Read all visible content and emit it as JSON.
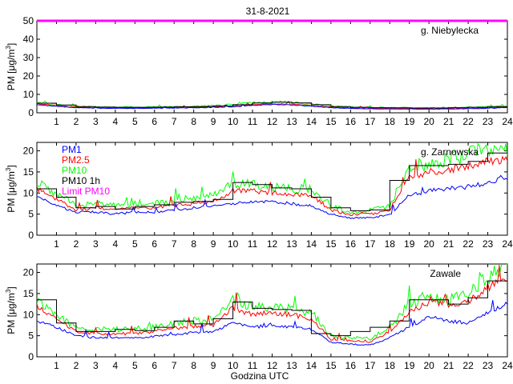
{
  "figure_title": "31-8-2021",
  "xlabel": "Godzina UTC",
  "colors": {
    "pm1": "#0000ff",
    "pm25": "#ff0000",
    "pm10": "#00ff00",
    "pm10_1h": "#000000",
    "limit": "#ff00ff"
  },
  "chart_data": [
    {
      "type": "line",
      "station": "g. Niebylecka",
      "ylabel": "PM [μg/m3]",
      "xlim": [
        0,
        24
      ],
      "ylim": [
        0,
        50
      ],
      "yticks": [
        0,
        10,
        20,
        30,
        40,
        50
      ],
      "xticks": [
        1,
        2,
        3,
        4,
        5,
        6,
        7,
        8,
        9,
        10,
        11,
        12,
        13,
        14,
        15,
        16,
        17,
        18,
        19,
        20,
        21,
        22,
        23,
        24
      ],
      "limit_pm10": 50,
      "hours": [
        0,
        1,
        2,
        3,
        4,
        5,
        6,
        7,
        8,
        9,
        10,
        11,
        12,
        13,
        14,
        15,
        16,
        17,
        18,
        19,
        20,
        21,
        22,
        23,
        24
      ],
      "series": [
        {
          "name": "PM1",
          "values": [
            4.5,
            3.5,
            2.8,
            2.5,
            2.4,
            2.4,
            2.5,
            2.6,
            2.7,
            2.9,
            3.3,
            4.0,
            4.5,
            4.3,
            3.6,
            2.8,
            2.4,
            2.2,
            2.1,
            2.0,
            2.0,
            2.1,
            2.2,
            2.4,
            2.8
          ]
        },
        {
          "name": "PM2.5",
          "values": [
            5.0,
            3.9,
            3.1,
            2.8,
            2.7,
            2.7,
            2.8,
            2.9,
            3.0,
            3.2,
            3.7,
            4.5,
            5.0,
            4.8,
            4.0,
            3.1,
            2.7,
            2.5,
            2.4,
            2.3,
            2.3,
            2.4,
            2.5,
            2.7,
            3.1
          ]
        },
        {
          "name": "PM10",
          "values": [
            5.8,
            4.5,
            3.6,
            3.2,
            3.1,
            3.1,
            3.2,
            3.4,
            3.5,
            3.8,
            4.5,
            5.5,
            6.0,
            5.7,
            4.7,
            3.6,
            3.1,
            2.9,
            2.8,
            2.7,
            2.7,
            2.8,
            3.0,
            3.3,
            3.8
          ]
        }
      ],
      "pm10_hourly": [
        5.2,
        4.2,
        3.4,
        3.1,
        3.0,
        3.0,
        3.1,
        3.3,
        3.4,
        3.7,
        4.4,
        5.3,
        5.8,
        5.4,
        4.4,
        3.4,
        3.0,
        2.8,
        2.7,
        2.6,
        2.6,
        2.8,
        3.0,
        3.4
      ]
    },
    {
      "type": "line",
      "station": "g. Zarnowska",
      "ylabel": "PM [μg/m3]",
      "xlim": [
        0,
        24
      ],
      "ylim": [
        0,
        22
      ],
      "yticks": [
        0,
        5,
        10,
        15,
        20
      ],
      "xticks": [
        1,
        2,
        3,
        4,
        5,
        6,
        7,
        8,
        9,
        10,
        11,
        12,
        13,
        14,
        15,
        16,
        17,
        18,
        19,
        20,
        21,
        22,
        23,
        24
      ],
      "legend": [
        "PM1",
        "PM2.5",
        "PM10",
        "PM10 1h",
        "Limit PM10"
      ],
      "hours": [
        0,
        1,
        2,
        3,
        4,
        5,
        6,
        7,
        8,
        9,
        10,
        11,
        12,
        13,
        14,
        15,
        16,
        17,
        18,
        19,
        20,
        21,
        22,
        23,
        24
      ],
      "series": [
        {
          "name": "PM1",
          "values": [
            9.0,
            7.0,
            5.5,
            5.5,
            5.0,
            5.5,
            5.5,
            6.0,
            6.5,
            6.8,
            7.5,
            8.0,
            8.0,
            7.5,
            7.0,
            5.0,
            4.0,
            4.2,
            4.8,
            9.5,
            10.5,
            11.0,
            11.5,
            12.5,
            13.5
          ]
        },
        {
          "name": "PM2.5",
          "values": [
            11.0,
            8.5,
            6.0,
            6.5,
            6.0,
            6.5,
            6.5,
            7.0,
            7.5,
            8.0,
            10.5,
            10.5,
            10.0,
            9.5,
            9.5,
            6.0,
            4.8,
            5.0,
            6.0,
            14.0,
            15.0,
            15.5,
            16.5,
            18.0,
            17.5
          ]
        },
        {
          "name": "PM10",
          "values": [
            12.5,
            10.0,
            7.0,
            7.5,
            7.0,
            7.5,
            7.5,
            8.2,
            8.8,
            9.5,
            12.0,
            12.0,
            11.5,
            11.0,
            11.0,
            7.0,
            5.5,
            5.8,
            7.0,
            16.5,
            17.0,
            18.0,
            19.0,
            20.5,
            20.0
          ]
        }
      ],
      "pm10_hourly": [
        11.0,
        9.0,
        6.5,
        6.8,
        6.2,
        6.8,
        7.2,
        7.8,
        8.0,
        8.5,
        12.5,
        12.0,
        11.2,
        11.0,
        9.0,
        6.5,
        5.8,
        6.0,
        13.0,
        16.5,
        16.5,
        16.8,
        17.5,
        19.5
      ]
    },
    {
      "type": "line",
      "station": "Zawale",
      "ylabel": "PM [μg/m3]",
      "xlim": [
        0,
        24
      ],
      "ylim": [
        0,
        22
      ],
      "yticks": [
        0,
        5,
        10,
        15,
        20
      ],
      "xticks": [
        1,
        2,
        3,
        4,
        5,
        6,
        7,
        8,
        9,
        10,
        11,
        12,
        13,
        14,
        15,
        16,
        17,
        18,
        19,
        20,
        21,
        22,
        23,
        24
      ],
      "hours": [
        0,
        1,
        2,
        3,
        4,
        5,
        6,
        7,
        8,
        9,
        10,
        11,
        12,
        13,
        14,
        15,
        16,
        17,
        18,
        19,
        20,
        21,
        22,
        23,
        24
      ],
      "series": [
        {
          "name": "PM1",
          "values": [
            8.5,
            7.0,
            5.0,
            4.5,
            4.5,
            4.5,
            4.8,
            5.2,
            5.8,
            6.0,
            8.0,
            7.0,
            7.5,
            7.0,
            6.5,
            3.5,
            3.0,
            2.8,
            4.5,
            7.0,
            9.5,
            8.5,
            8.0,
            10.5,
            12.5
          ]
        },
        {
          "name": "PM2.5",
          "values": [
            12.0,
            9.0,
            6.0,
            5.5,
            5.5,
            5.5,
            6.0,
            6.8,
            7.2,
            7.5,
            11.5,
            10.0,
            10.5,
            10.0,
            9.0,
            4.2,
            3.8,
            3.5,
            6.0,
            10.5,
            13.0,
            12.5,
            13.0,
            16.5,
            18.5
          ]
        },
        {
          "name": "PM10",
          "values": [
            13.5,
            10.0,
            7.0,
            6.5,
            6.5,
            6.5,
            7.0,
            8.0,
            8.5,
            9.0,
            13.5,
            11.5,
            12.0,
            11.5,
            10.5,
            5.0,
            4.5,
            4.2,
            7.0,
            12.5,
            14.0,
            13.5,
            15.0,
            19.0,
            21.5
          ]
        }
      ],
      "pm10_hourly": [
        13.5,
        8.0,
        6.0,
        6.0,
        6.5,
        6.2,
        7.0,
        8.5,
        7.8,
        9.0,
        13.0,
        11.5,
        11.2,
        11.0,
        5.5,
        5.0,
        6.0,
        7.0,
        8.5,
        13.5,
        13.5,
        12.5,
        14.0,
        18.0
      ]
    }
  ]
}
